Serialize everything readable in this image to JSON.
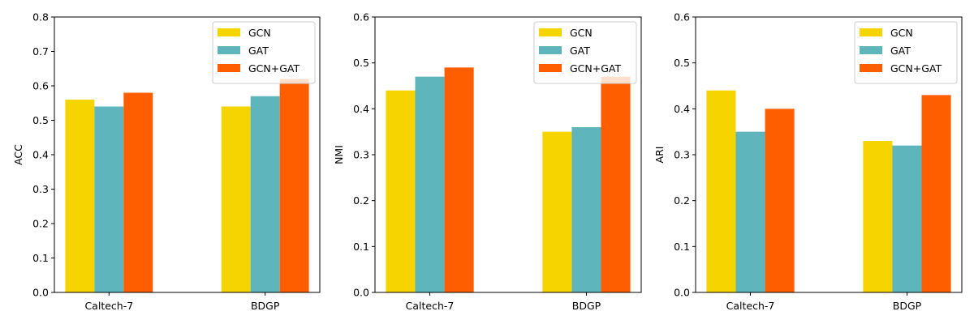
{
  "colors": {
    "GCN": "#f5d400",
    "GAT": "#5eb5bc",
    "GCN+GAT": "#ff5e00"
  },
  "chart_data": [
    {
      "type": "bar",
      "title": "",
      "xlabel": "",
      "ylabel": "ACC",
      "ylim": [
        0,
        0.8
      ],
      "yticks": [
        "0.0",
        "0.1",
        "0.2",
        "0.3",
        "0.4",
        "0.5",
        "0.6",
        "0.7",
        "0.8"
      ],
      "categories": [
        "Caltech-7",
        "BDGP"
      ],
      "legend_position": "top-right",
      "series": [
        {
          "name": "GCN",
          "values": [
            0.56,
            0.54
          ]
        },
        {
          "name": "GAT",
          "values": [
            0.54,
            0.57
          ]
        },
        {
          "name": "GCN+GAT",
          "values": [
            0.58,
            0.62
          ]
        }
      ]
    },
    {
      "type": "bar",
      "title": "",
      "xlabel": "",
      "ylabel": "NMI",
      "ylim": [
        0,
        0.6
      ],
      "yticks": [
        "0.0",
        "0.1",
        "0.2",
        "0.3",
        "0.4",
        "0.5",
        "0.6"
      ],
      "categories": [
        "Caltech-7",
        "BDGP"
      ],
      "legend_position": "top-right",
      "series": [
        {
          "name": "GCN",
          "values": [
            0.44,
            0.35
          ]
        },
        {
          "name": "GAT",
          "values": [
            0.47,
            0.36
          ]
        },
        {
          "name": "GCN+GAT",
          "values": [
            0.49,
            0.47
          ]
        }
      ]
    },
    {
      "type": "bar",
      "title": "",
      "xlabel": "",
      "ylabel": "ARI",
      "ylim": [
        0,
        0.6
      ],
      "yticks": [
        "0.0",
        "0.1",
        "0.2",
        "0.3",
        "0.4",
        "0.5",
        "0.6"
      ],
      "categories": [
        "Caltech-7",
        "BDGP"
      ],
      "legend_position": "top-right",
      "series": [
        {
          "name": "GCN",
          "values": [
            0.44,
            0.33
          ]
        },
        {
          "name": "GAT",
          "values": [
            0.35,
            0.32
          ]
        },
        {
          "name": "GCN+GAT",
          "values": [
            0.4,
            0.43
          ]
        }
      ]
    }
  ]
}
